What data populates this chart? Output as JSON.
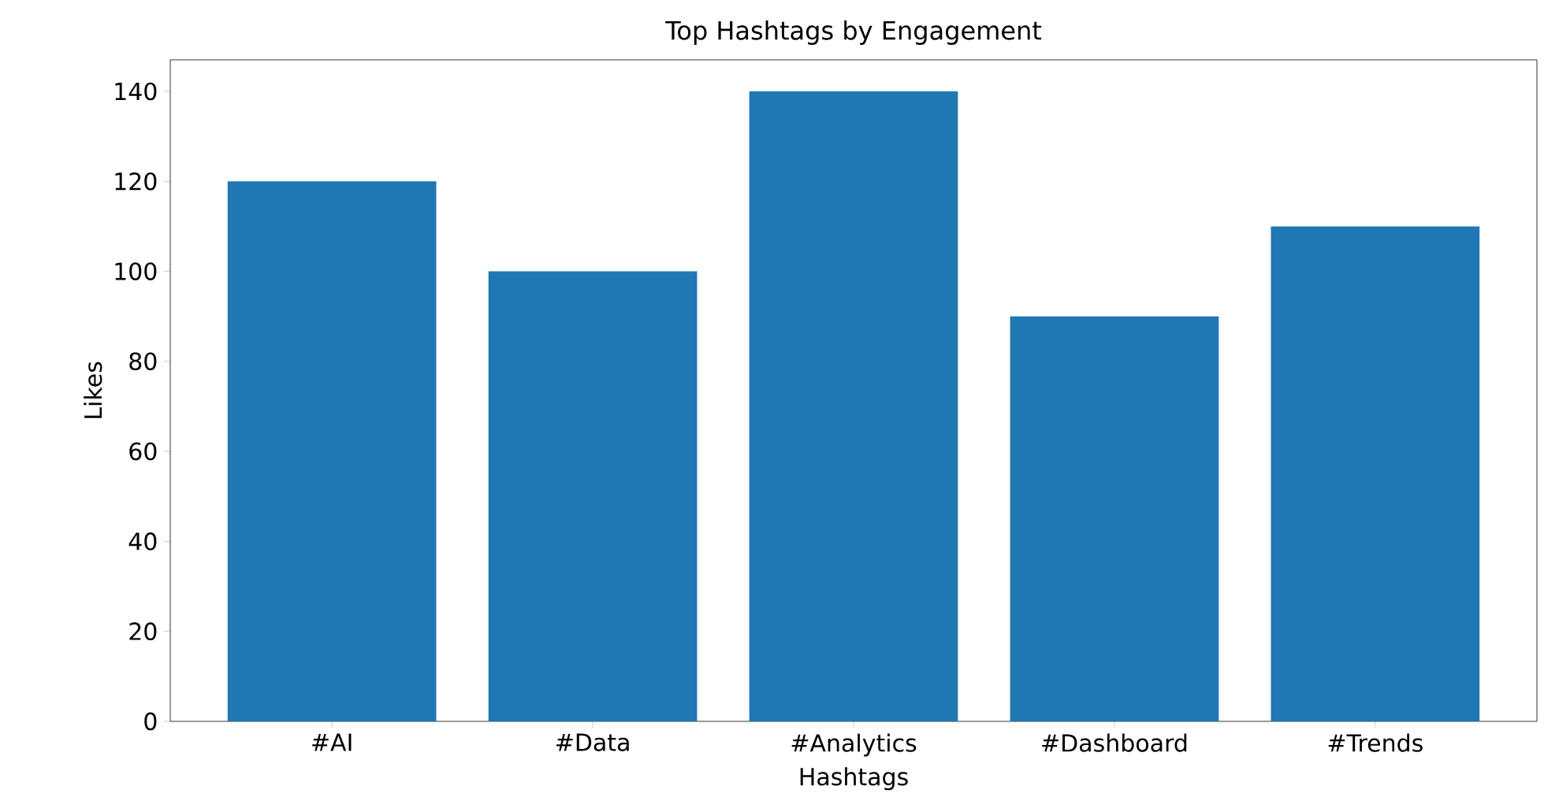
{
  "chart_data": {
    "type": "bar",
    "title": "Top Hashtags by Engagement",
    "xlabel": "Hashtags",
    "ylabel": "Likes",
    "categories": [
      "#AI",
      "#Data",
      "#Analytics",
      "#Dashboard",
      "#Trends"
    ],
    "values": [
      120,
      100,
      140,
      90,
      110
    ],
    "color": "#1f77b4",
    "ylim": [
      0,
      147
    ],
    "yticks": [
      0,
      20,
      40,
      60,
      80,
      100,
      120,
      140
    ]
  }
}
